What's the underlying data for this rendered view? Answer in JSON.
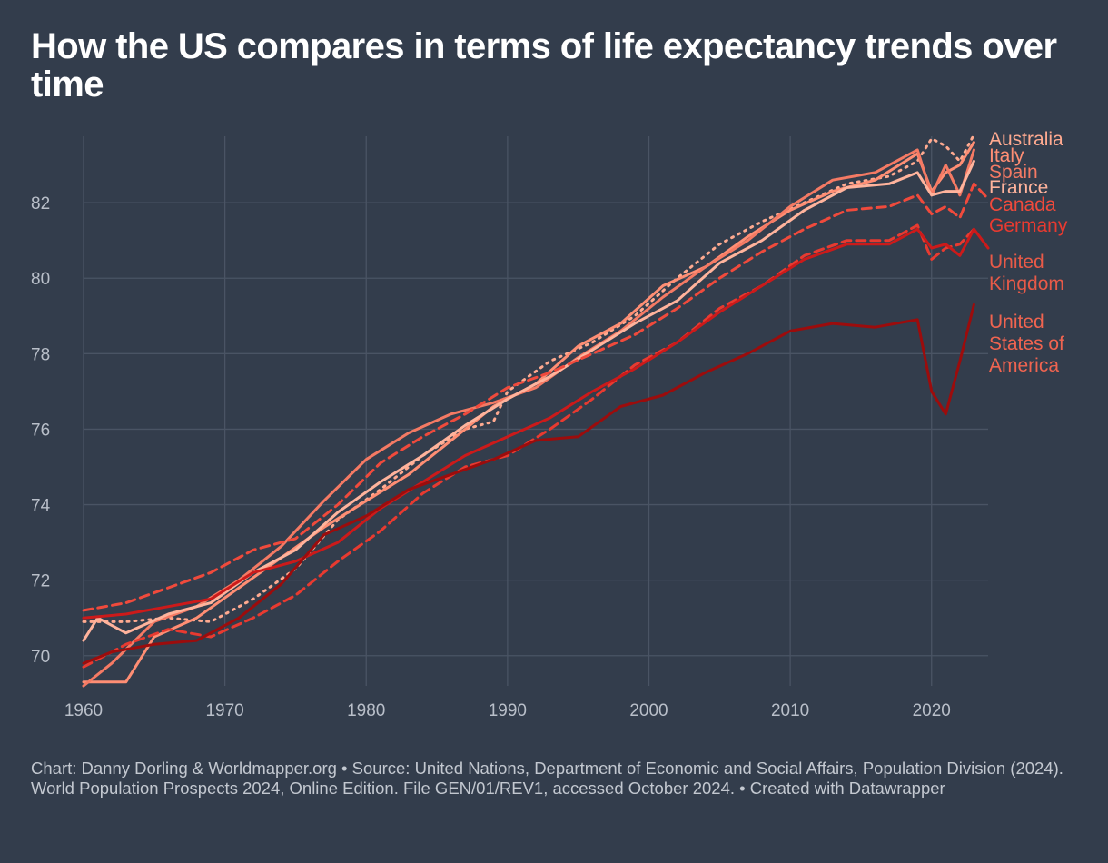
{
  "title": "How the US compares in terms of life expectancy trends over time",
  "footer": "Chart: Danny Dorling & Worldmapper.org • Source: United Nations, Department of Economic and Social Affairs, Population Division (2024). World Population Prospects 2024, Online Edition. File GEN/01/REV1, accessed October 2024. • Created with Datawrapper",
  "chart_data": {
    "type": "line",
    "title": "How the US compares in terms of life expectancy trends over time",
    "xlabel": "",
    "ylabel": "",
    "xlim": [
      1960,
      2024
    ],
    "ylim": [
      69.2,
      84.0
    ],
    "x_ticks": [
      1960,
      1970,
      1980,
      1990,
      2000,
      2010,
      2020
    ],
    "y_ticks": [
      70,
      72,
      74,
      76,
      78,
      80,
      82
    ],
    "grid": true,
    "legend": "direct labels at right end of lines",
    "series": [
      {
        "name": "Australia",
        "color": "#ffaa90",
        "dash": "dotted",
        "points": [
          [
            1960,
            70.9
          ],
          [
            1963,
            70.9
          ],
          [
            1966,
            71.0
          ],
          [
            1969,
            70.9
          ],
          [
            1972,
            71.5
          ],
          [
            1975,
            72.3
          ],
          [
            1978,
            73.6
          ],
          [
            1981,
            74.4
          ],
          [
            1984,
            75.3
          ],
          [
            1987,
            76.0
          ],
          [
            1989,
            76.2
          ],
          [
            1990,
            77.0
          ],
          [
            1993,
            77.8
          ],
          [
            1996,
            78.3
          ],
          [
            1999,
            79.0
          ],
          [
            2002,
            80.0
          ],
          [
            2005,
            80.9
          ],
          [
            2008,
            81.5
          ],
          [
            2011,
            82.0
          ],
          [
            2014,
            82.5
          ],
          [
            2017,
            82.7
          ],
          [
            2019,
            83.1
          ],
          [
            2020,
            83.7
          ],
          [
            2021,
            83.5
          ],
          [
            2022,
            83.1
          ],
          [
            2023,
            83.8
          ]
        ]
      },
      {
        "name": "Italy",
        "color": "#ff8e74",
        "dash": "solid",
        "points": [
          [
            1960,
            69.3
          ],
          [
            1963,
            69.3
          ],
          [
            1965,
            70.5
          ],
          [
            1968,
            71.0
          ],
          [
            1971,
            71.8
          ],
          [
            1974,
            72.6
          ],
          [
            1977,
            73.4
          ],
          [
            1980,
            74.1
          ],
          [
            1983,
            74.8
          ],
          [
            1986,
            75.7
          ],
          [
            1989,
            76.6
          ],
          [
            1992,
            77.2
          ],
          [
            1995,
            78.2
          ],
          [
            1998,
            78.8
          ],
          [
            2001,
            79.8
          ],
          [
            2004,
            80.3
          ],
          [
            2007,
            81.1
          ],
          [
            2010,
            81.8
          ],
          [
            2013,
            82.3
          ],
          [
            2016,
            82.6
          ],
          [
            2019,
            83.3
          ],
          [
            2020,
            82.3
          ],
          [
            2021,
            82.8
          ],
          [
            2022,
            83.0
          ],
          [
            2023,
            83.6
          ]
        ]
      },
      {
        "name": "Spain",
        "color": "#f57a64",
        "dash": "solid",
        "points": [
          [
            1960,
            69.2
          ],
          [
            1962,
            69.8
          ],
          [
            1965,
            70.9
          ],
          [
            1968,
            71.3
          ],
          [
            1971,
            72.0
          ],
          [
            1974,
            72.9
          ],
          [
            1977,
            74.1
          ],
          [
            1980,
            75.2
          ],
          [
            1983,
            75.9
          ],
          [
            1986,
            76.4
          ],
          [
            1989,
            76.7
          ],
          [
            1992,
            77.1
          ],
          [
            1995,
            77.9
          ],
          [
            1998,
            78.6
          ],
          [
            2001,
            79.5
          ],
          [
            2004,
            80.3
          ],
          [
            2007,
            81.0
          ],
          [
            2010,
            81.9
          ],
          [
            2013,
            82.6
          ],
          [
            2016,
            82.8
          ],
          [
            2019,
            83.4
          ],
          [
            2020,
            82.2
          ],
          [
            2021,
            83.0
          ],
          [
            2022,
            82.2
          ],
          [
            2023,
            83.4
          ]
        ]
      },
      {
        "name": "France",
        "color": "#ffb39c",
        "dash": "solid",
        "points": [
          [
            1960,
            70.4
          ],
          [
            1961,
            71.0
          ],
          [
            1963,
            70.6
          ],
          [
            1966,
            71.1
          ],
          [
            1969,
            71.4
          ],
          [
            1972,
            72.2
          ],
          [
            1975,
            72.8
          ],
          [
            1978,
            73.8
          ],
          [
            1981,
            74.6
          ],
          [
            1984,
            75.3
          ],
          [
            1987,
            76.1
          ],
          [
            1990,
            76.8
          ],
          [
            1993,
            77.4
          ],
          [
            1996,
            78.1
          ],
          [
            1999,
            78.8
          ],
          [
            2002,
            79.4
          ],
          [
            2005,
            80.4
          ],
          [
            2008,
            81.0
          ],
          [
            2011,
            81.8
          ],
          [
            2014,
            82.4
          ],
          [
            2017,
            82.5
          ],
          [
            2019,
            82.8
          ],
          [
            2020,
            82.2
          ],
          [
            2021,
            82.3
          ],
          [
            2022,
            82.3
          ],
          [
            2023,
            83.1
          ]
        ]
      },
      {
        "name": "Canada",
        "color": "#f04a3c",
        "dash": "dashed",
        "points": [
          [
            1960,
            71.2
          ],
          [
            1963,
            71.4
          ],
          [
            1966,
            71.8
          ],
          [
            1969,
            72.2
          ],
          [
            1972,
            72.8
          ],
          [
            1975,
            73.1
          ],
          [
            1978,
            74.0
          ],
          [
            1981,
            75.1
          ],
          [
            1984,
            75.8
          ],
          [
            1987,
            76.4
          ],
          [
            1990,
            77.1
          ],
          [
            1993,
            77.5
          ],
          [
            1996,
            78.0
          ],
          [
            1999,
            78.5
          ],
          [
            2002,
            79.2
          ],
          [
            2005,
            80.0
          ],
          [
            2008,
            80.7
          ],
          [
            2011,
            81.3
          ],
          [
            2014,
            81.8
          ],
          [
            2017,
            81.9
          ],
          [
            2019,
            82.2
          ],
          [
            2020,
            81.7
          ],
          [
            2021,
            81.9
          ],
          [
            2022,
            81.6
          ],
          [
            2023,
            82.5
          ],
          [
            2024,
            82.1
          ]
        ]
      },
      {
        "name": "Germany",
        "color": "#e83a30",
        "dash": "dashed",
        "points": [
          [
            1960,
            69.7
          ],
          [
            1963,
            70.3
          ],
          [
            1966,
            70.7
          ],
          [
            1969,
            70.5
          ],
          [
            1972,
            71.0
          ],
          [
            1975,
            71.6
          ],
          [
            1978,
            72.5
          ],
          [
            1981,
            73.3
          ],
          [
            1984,
            74.3
          ],
          [
            1987,
            75.0
          ],
          [
            1990,
            75.3
          ],
          [
            1993,
            76.0
          ],
          [
            1996,
            76.8
          ],
          [
            1999,
            77.7
          ],
          [
            2002,
            78.3
          ],
          [
            2005,
            79.2
          ],
          [
            2008,
            79.8
          ],
          [
            2011,
            80.6
          ],
          [
            2014,
            81.0
          ],
          [
            2017,
            81.0
          ],
          [
            2019,
            81.4
          ],
          [
            2020,
            80.5
          ],
          [
            2021,
            80.8
          ],
          [
            2022,
            80.9
          ],
          [
            2023,
            81.3
          ]
        ]
      },
      {
        "name": "United Kingdom",
        "color": "#cc1a1a",
        "dash": "solid",
        "points": [
          [
            1960,
            71.0
          ],
          [
            1963,
            71.1
          ],
          [
            1966,
            71.3
          ],
          [
            1969,
            71.5
          ],
          [
            1972,
            72.2
          ],
          [
            1975,
            72.5
          ],
          [
            1978,
            73.0
          ],
          [
            1981,
            73.9
          ],
          [
            1984,
            74.6
          ],
          [
            1987,
            75.3
          ],
          [
            1990,
            75.8
          ],
          [
            1993,
            76.3
          ],
          [
            1996,
            77.0
          ],
          [
            1999,
            77.6
          ],
          [
            2002,
            78.3
          ],
          [
            2005,
            79.1
          ],
          [
            2008,
            79.8
          ],
          [
            2011,
            80.5
          ],
          [
            2014,
            80.9
          ],
          [
            2017,
            80.9
          ],
          [
            2019,
            81.3
          ],
          [
            2020,
            80.8
          ],
          [
            2021,
            80.9
          ],
          [
            2022,
            80.6
          ],
          [
            2023,
            81.3
          ],
          [
            2024,
            80.8
          ]
        ]
      },
      {
        "name": "United States of America",
        "color": "#9c0c0c",
        "dash": "solid",
        "points": [
          [
            1960,
            69.8
          ],
          [
            1962,
            70.1
          ],
          [
            1965,
            70.3
          ],
          [
            1968,
            70.4
          ],
          [
            1971,
            71.0
          ],
          [
            1974,
            71.9
          ],
          [
            1977,
            73.2
          ],
          [
            1980,
            73.7
          ],
          [
            1983,
            74.4
          ],
          [
            1986,
            74.8
          ],
          [
            1989,
            75.2
          ],
          [
            1992,
            75.7
          ],
          [
            1995,
            75.8
          ],
          [
            1998,
            76.6
          ],
          [
            2001,
            76.9
          ],
          [
            2004,
            77.5
          ],
          [
            2007,
            78.0
          ],
          [
            2010,
            78.6
          ],
          [
            2013,
            78.8
          ],
          [
            2016,
            78.7
          ],
          [
            2019,
            78.9
          ],
          [
            2020,
            77.0
          ],
          [
            2021,
            76.4
          ],
          [
            2022,
            77.8
          ],
          [
            2023,
            79.3
          ]
        ]
      }
    ],
    "labels": [
      {
        "series": "Australia",
        "lines": [
          "Australia"
        ],
        "color": "#ffaa90"
      },
      {
        "series": "Italy",
        "lines": [
          "Italy"
        ],
        "color": "#ff8e74"
      },
      {
        "series": "Spain",
        "lines": [
          "Spain"
        ],
        "color": "#f57a64"
      },
      {
        "series": "France",
        "lines": [
          "France"
        ],
        "color": "#ffb39c"
      },
      {
        "series": "Canada",
        "lines": [
          "Canada"
        ],
        "color": "#f04a3c"
      },
      {
        "series": "Germany",
        "lines": [
          "Germany"
        ],
        "color": "#e83a30"
      },
      {
        "series": "United Kingdom",
        "lines": [
          "United",
          "Kingdom"
        ],
        "color": "#e85a48"
      },
      {
        "series": "United States of America",
        "lines": [
          "United",
          "States of",
          "America"
        ],
        "color": "#f06450"
      }
    ]
  }
}
